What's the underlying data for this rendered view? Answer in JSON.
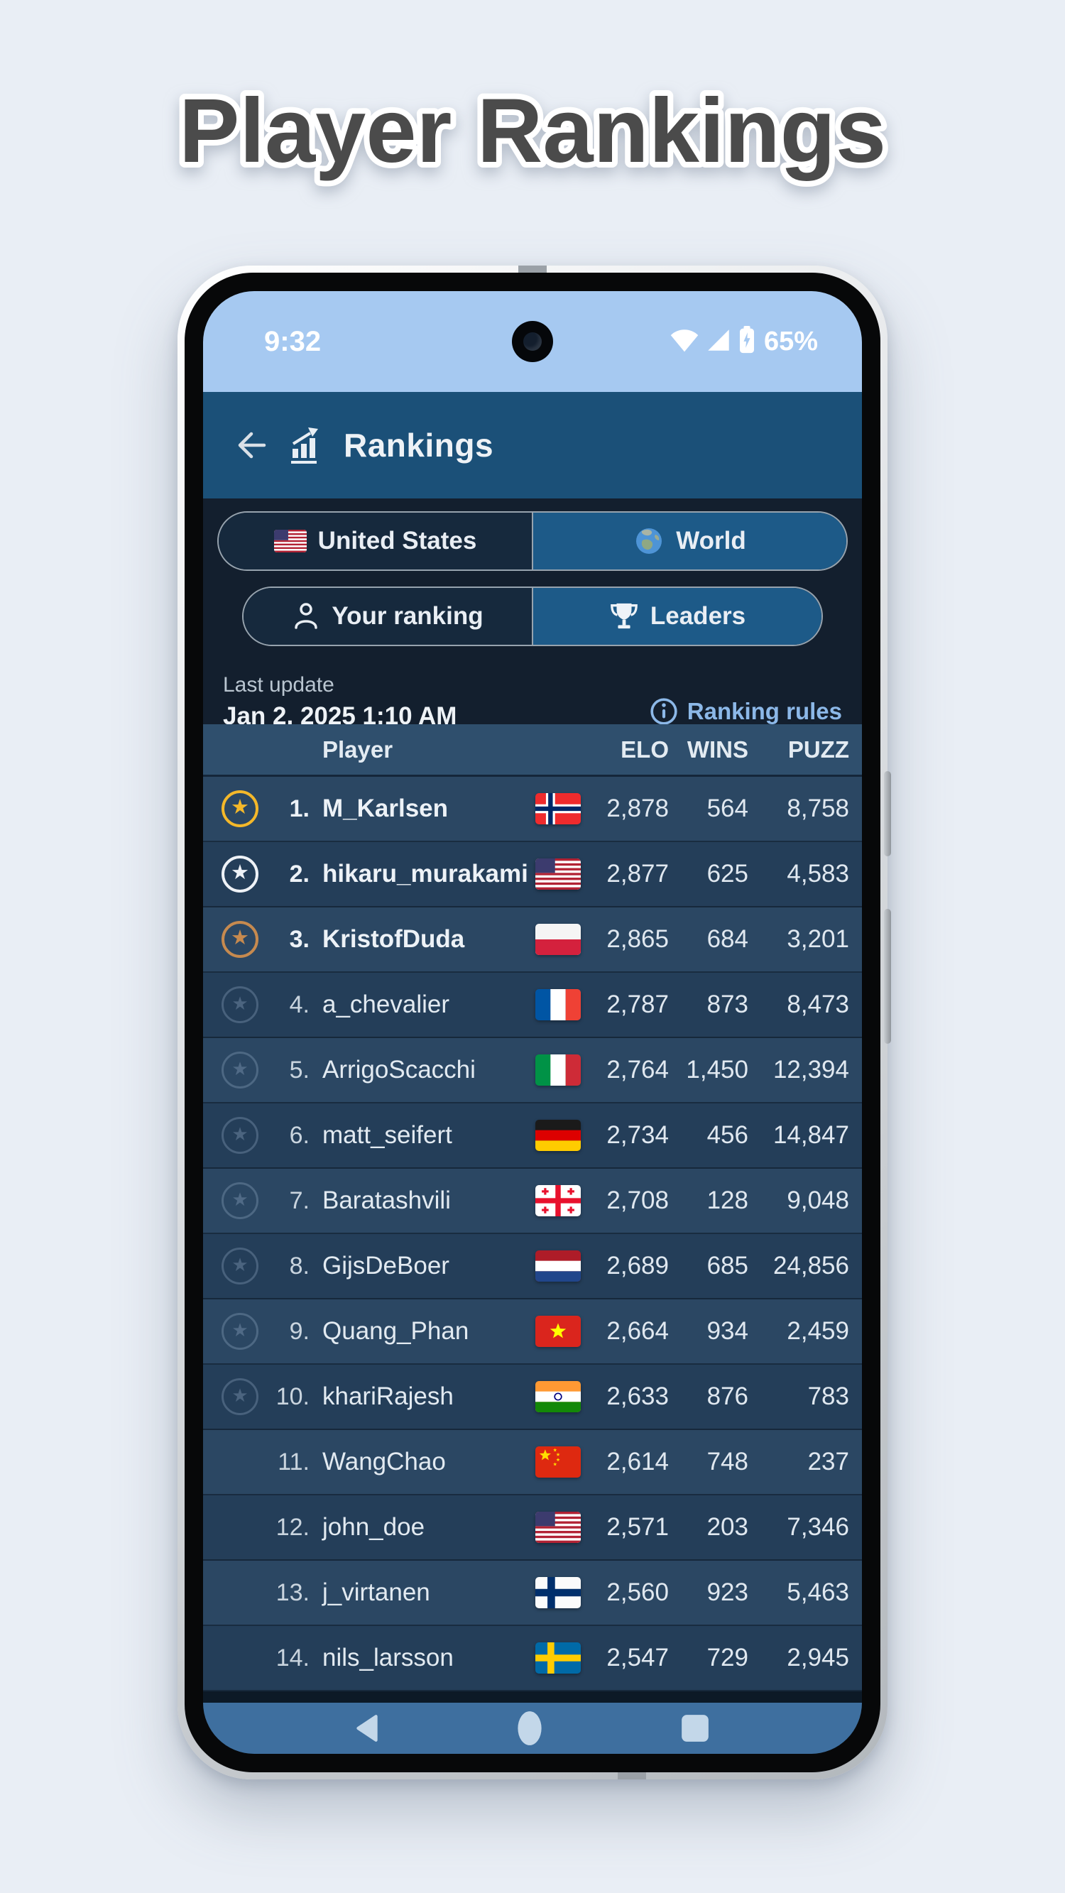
{
  "page": {
    "title": "Player Rankings"
  },
  "status_bar": {
    "time": "9:32",
    "battery": "65%"
  },
  "header": {
    "title": "Rankings"
  },
  "toggles": {
    "region": [
      {
        "label": "United States",
        "icon": "us-flag",
        "selected": false
      },
      {
        "label": "World",
        "icon": "globe",
        "selected": true
      }
    ],
    "view": [
      {
        "label": "Your ranking",
        "icon": "person",
        "selected": false
      },
      {
        "label": "Leaders",
        "icon": "trophy",
        "selected": true
      }
    ]
  },
  "update": {
    "label": "Last update",
    "timestamp": "Jan 2, 2025 1:10 AM",
    "rules_link": "Ranking rules"
  },
  "table": {
    "columns": [
      "Player",
      "ELO",
      "WINS",
      "PUZZ"
    ],
    "rows": [
      {
        "rank": "1.",
        "medal": "gold",
        "name": "M_Karlsen",
        "flag": "no",
        "elo": "2,878",
        "wins": "564",
        "puzz": "8,758"
      },
      {
        "rank": "2.",
        "medal": "silver",
        "name": "hikaru_murakami",
        "flag": "us",
        "elo": "2,877",
        "wins": "625",
        "puzz": "4,583"
      },
      {
        "rank": "3.",
        "medal": "bronze",
        "name": "KristofDuda",
        "flag": "pl",
        "elo": "2,865",
        "wins": "684",
        "puzz": "3,201"
      },
      {
        "rank": "4.",
        "medal": "ghost",
        "name": "a_chevalier",
        "flag": "fr",
        "elo": "2,787",
        "wins": "873",
        "puzz": "8,473"
      },
      {
        "rank": "5.",
        "medal": "ghost",
        "name": "ArrigoScacchi",
        "flag": "it",
        "elo": "2,764",
        "wins": "1,450",
        "puzz": "12,394"
      },
      {
        "rank": "6.",
        "medal": "ghost",
        "name": "matt_seifert",
        "flag": "de",
        "elo": "2,734",
        "wins": "456",
        "puzz": "14,847"
      },
      {
        "rank": "7.",
        "medal": "ghost",
        "name": "Baratashvili",
        "flag": "ge",
        "elo": "2,708",
        "wins": "128",
        "puzz": "9,048"
      },
      {
        "rank": "8.",
        "medal": "ghost",
        "name": "GijsDeBoer",
        "flag": "nl",
        "elo": "2,689",
        "wins": "685",
        "puzz": "24,856"
      },
      {
        "rank": "9.",
        "medal": "ghost",
        "name": "Quang_Phan",
        "flag": "vn",
        "elo": "2,664",
        "wins": "934",
        "puzz": "2,459"
      },
      {
        "rank": "10.",
        "medal": "ghost",
        "name": "khariRajesh",
        "flag": "in",
        "elo": "2,633",
        "wins": "876",
        "puzz": "783"
      },
      {
        "rank": "11.",
        "medal": "none",
        "name": "WangChao",
        "flag": "cn",
        "elo": "2,614",
        "wins": "748",
        "puzz": "237"
      },
      {
        "rank": "12.",
        "medal": "none",
        "name": "john_doe",
        "flag": "us",
        "elo": "2,571",
        "wins": "203",
        "puzz": "7,346"
      },
      {
        "rank": "13.",
        "medal": "none",
        "name": "j_virtanen",
        "flag": "fi",
        "elo": "2,560",
        "wins": "923",
        "puzz": "5,463"
      },
      {
        "rank": "14.",
        "medal": "none",
        "name": "nils_larsson",
        "flag": "se",
        "elo": "2,547",
        "wins": "729",
        "puzz": "2,945"
      }
    ]
  },
  "nav": {
    "back": "back",
    "home": "home",
    "recents": "recents"
  },
  "colors": {
    "accent_selected": "#1d5a88",
    "link_blue": "#8cb8e8",
    "gold": "#f4b82a",
    "silver": "#eef2f7",
    "bronze": "#c68a4f",
    "status_bar": "#a6c9f1",
    "header": "#1b5078",
    "nav_bar": "#3e6f9f"
  }
}
